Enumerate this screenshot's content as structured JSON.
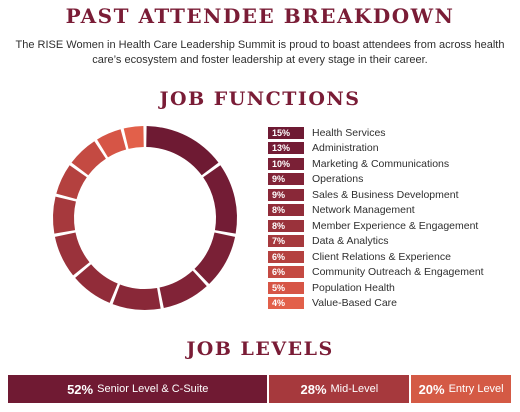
{
  "header": {
    "title": "PAST ATTENDEE BREAKDOWN",
    "subtitle": "The RISE Women in Health Care Leadership Summit is proud to boast attendees from across health care’s ecosystem and foster leadership at every stage in their career."
  },
  "sections": {
    "job_functions": "JOB FUNCTIONS",
    "job_levels": "JOB LEVELS"
  },
  "chart_data": [
    {
      "type": "pie",
      "title": "JOB FUNCTIONS",
      "categories": [
        "Health Services",
        "Administration",
        "Marketing & Communications",
        "Operations",
        "Sales & Business Development",
        "Network Management",
        "Member Experience & Engagement",
        "Data & Analytics",
        "Client Relations & Experience",
        "Community Outreach & Engagement",
        "Population Health",
        "Value-Based Care"
      ],
      "values": [
        15,
        13,
        10,
        9,
        9,
        8,
        8,
        7,
        6,
        6,
        5,
        4
      ],
      "labels": [
        "15%",
        "13%",
        "10%",
        "9%",
        "9%",
        "8%",
        "8%",
        "7%",
        "6%",
        "6%",
        "5%",
        "4%"
      ],
      "colors": [
        "#6e1a33",
        "#731c35",
        "#7a2036",
        "#812337",
        "#892838",
        "#912c39",
        "#9a323b",
        "#a6393d",
        "#b4413f",
        "#c44a42",
        "#d65546",
        "#e2604a"
      ],
      "legend": "right"
    },
    {
      "type": "bar",
      "title": "JOB LEVELS",
      "categories": [
        "Senior Level & C-Suite",
        "Mid-Level",
        "Entry Level"
      ],
      "values": [
        52,
        28,
        20
      ],
      "labels": [
        "52%",
        "28%",
        "20%"
      ],
      "colors": [
        "#701a33",
        "#a6393d",
        "#d45a45"
      ]
    }
  ]
}
